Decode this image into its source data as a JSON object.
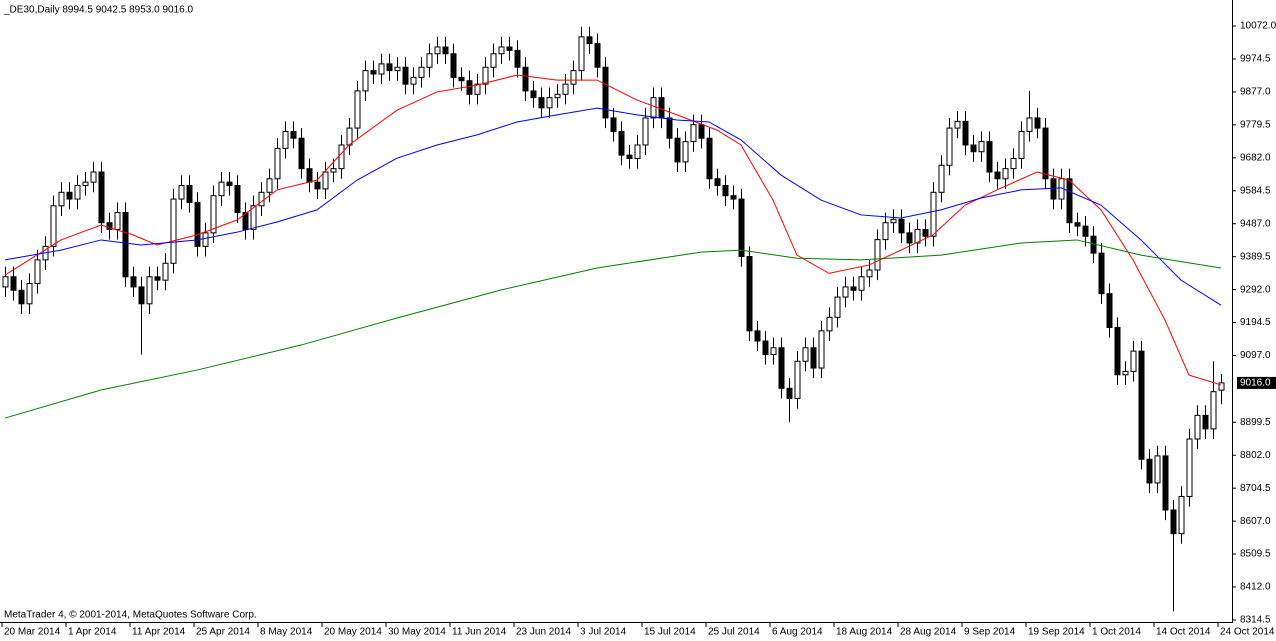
{
  "chart_data": {
    "type": "candlestick",
    "title": "_DE30,Daily  8994.5 9042.5 8953.0 9016.0",
    "footer": "MetaTrader 4, © 2001-2014, MetaQuotes Software Corp.",
    "categories": [
      "20 Mar 2014",
      null,
      null,
      null,
      null,
      null,
      null,
      null,
      "1 Apr 2014",
      null,
      null,
      null,
      null,
      null,
      null,
      null,
      "11 Apr 2014",
      null,
      null,
      null,
      null,
      null,
      null,
      null,
      "25 Apr 2014",
      null,
      null,
      null,
      null,
      null,
      null,
      null,
      "8 May 2014",
      null,
      null,
      null,
      null,
      null,
      null,
      null,
      "20 May 2014",
      null,
      null,
      null,
      null,
      null,
      null,
      null,
      "30 May 2014",
      null,
      null,
      null,
      null,
      null,
      null,
      null,
      "11 Jun 2014",
      null,
      null,
      null,
      null,
      null,
      null,
      null,
      "23 Jun 2014",
      null,
      null,
      null,
      null,
      null,
      null,
      null,
      "3 Jul 2014",
      null,
      null,
      null,
      null,
      null,
      null,
      null,
      "15 Jul 2014",
      null,
      null,
      null,
      null,
      null,
      null,
      null,
      "25 Jul 2014",
      null,
      null,
      null,
      null,
      null,
      null,
      null,
      "6 Aug 2014",
      null,
      null,
      null,
      null,
      null,
      null,
      null,
      "18 Aug 2014",
      null,
      null,
      null,
      null,
      null,
      null,
      null,
      "28 Aug 2014",
      null,
      null,
      null,
      null,
      null,
      null,
      null,
      "9 Sep 2014",
      null,
      null,
      null,
      null,
      null,
      null,
      null,
      "19 Sep 2014",
      null,
      null,
      null,
      null,
      null,
      null,
      null,
      "1 Oct 2014",
      null,
      null,
      null,
      null,
      null,
      null,
      null,
      "14 Oct 2014",
      null,
      null,
      null,
      null,
      null,
      null,
      null,
      "24 Oct 2014"
    ],
    "open": [
      9300,
      9330,
      9290,
      9250,
      9310,
      9380,
      9420,
      9540,
      9580,
      9560,
      9600,
      9610,
      9640,
      9490,
      9470,
      9520,
      9330,
      9300,
      9250,
      9330,
      9320,
      9370,
      9560,
      9600,
      9550,
      9420,
      9460,
      9570,
      9610,
      9600,
      9520,
      9470,
      9540,
      9580,
      9620,
      9710,
      9760,
      9740,
      9650,
      9610,
      9590,
      9640,
      9650,
      9720,
      9770,
      9880,
      9940,
      9930,
      9960,
      9940,
      9950,
      9900,
      9920,
      9950,
      9990,
      10010,
      9990,
      9920,
      9910,
      9870,
      9900,
      9950,
      9990,
      10010,
      10000,
      9950,
      9880,
      9860,
      9830,
      9860,
      9870,
      9900,
      9940,
      10040,
      10020,
      9950,
      9800,
      9760,
      9690,
      9680,
      9720,
      9800,
      9860,
      9800,
      9740,
      9670,
      9730,
      9780,
      9740,
      9620,
      9600,
      9570,
      9560,
      9390,
      9170,
      9140,
      9100,
      9120,
      9000,
      8970,
      9080,
      9120,
      9060,
      9170,
      9210,
      9270,
      9300,
      9290,
      9330,
      9350,
      9440,
      9490,
      9500,
      9460,
      9430,
      9470,
      9450,
      9580,
      9660,
      9770,
      9790,
      9720,
      9700,
      9730,
      9640,
      9620,
      9650,
      9680,
      9760,
      9800,
      9770,
      9620,
      9560,
      9620,
      9490,
      9480,
      9450,
      9400,
      9280,
      9180,
      9040,
      9050,
      9110,
      8790,
      8720,
      8800,
      8640,
      8570,
      8680,
      8850,
      8920,
      8880,
      8994.5
    ],
    "high": [
      9360,
      9360,
      9320,
      9340,
      9410,
      9450,
      9570,
      9610,
      9610,
      9630,
      9640,
      9670,
      9670,
      9520,
      9550,
      9550,
      9360,
      9330,
      9360,
      9360,
      9400,
      9590,
      9630,
      9630,
      9580,
      9490,
      9600,
      9640,
      9640,
      9630,
      9550,
      9570,
      9610,
      9650,
      9740,
      9790,
      9790,
      9770,
      9680,
      9640,
      9670,
      9680,
      9750,
      9800,
      9910,
      9970,
      9970,
      9990,
      9990,
      9980,
      9980,
      9950,
      9980,
      10020,
      10040,
      10040,
      10020,
      9950,
      9940,
      9930,
      9980,
      10020,
      10040,
      10040,
      10030,
      9980,
      9910,
      9890,
      9890,
      9900,
      9930,
      9970,
      10070,
      10070,
      10050,
      9980,
      9830,
      9790,
      9720,
      9750,
      9830,
      9890,
      9890,
      9830,
      9770,
      9760,
      9810,
      9810,
      9770,
      9650,
      9630,
      9600,
      9590,
      9420,
      9200,
      9170,
      9150,
      9150,
      9030,
      9110,
      9150,
      9150,
      9200,
      9240,
      9300,
      9330,
      9330,
      9360,
      9380,
      9470,
      9520,
      9530,
      9530,
      9490,
      9500,
      9500,
      9610,
      9690,
      9800,
      9820,
      9820,
      9750,
      9760,
      9760,
      9670,
      9680,
      9710,
      9790,
      9880,
      9830,
      9800,
      9650,
      9650,
      9650,
      9520,
      9510,
      9480,
      9430,
      9310,
      9210,
      9080,
      9140,
      9140,
      8820,
      8830,
      8830,
      8670,
      8710,
      8880,
      8950,
      8950,
      9080,
      9042.5
    ],
    "low": [
      9270,
      9260,
      9220,
      9220,
      9280,
      9350,
      9390,
      9510,
      9530,
      9530,
      9570,
      9580,
      9460,
      9440,
      9440,
      9300,
      9270,
      9100,
      9220,
      9290,
      9290,
      9340,
      9530,
      9520,
      9390,
      9390,
      9430,
      9540,
      9570,
      9490,
      9440,
      9440,
      9510,
      9550,
      9590,
      9680,
      9710,
      9620,
      9580,
      9560,
      9560,
      9610,
      9620,
      9690,
      9740,
      9850,
      9900,
      9900,
      9910,
      9910,
      9870,
      9870,
      9890,
      9920,
      9960,
      9960,
      9890,
      9880,
      9840,
      9840,
      9870,
      9920,
      9960,
      9970,
      9920,
      9850,
      9830,
      9800,
      9800,
      9830,
      9840,
      9870,
      9910,
      9990,
      9920,
      9770,
      9730,
      9660,
      9650,
      9650,
      9690,
      9770,
      9770,
      9710,
      9640,
      9640,
      9700,
      9710,
      9590,
      9570,
      9540,
      9530,
      9360,
      9140,
      9110,
      9070,
      9070,
      8970,
      8900,
      8940,
      9050,
      9030,
      9030,
      9140,
      9180,
      9240,
      9260,
      9260,
      9300,
      9320,
      9410,
      9460,
      9430,
      9400,
      9400,
      9420,
      9420,
      9550,
      9630,
      9740,
      9690,
      9670,
      9670,
      9610,
      9590,
      9590,
      9620,
      9650,
      9730,
      9740,
      9590,
      9530,
      9530,
      9460,
      9450,
      9420,
      9370,
      9250,
      9150,
      9010,
      9010,
      9020,
      8760,
      8690,
      8690,
      8610,
      8340,
      8540,
      8650,
      8820,
      8850,
      8850,
      8953
    ],
    "close": [
      9330,
      9290,
      9250,
      9310,
      9380,
      9420,
      9540,
      9580,
      9560,
      9600,
      9610,
      9640,
      9490,
      9470,
      9520,
      9330,
      9300,
      9250,
      9330,
      9320,
      9370,
      9560,
      9600,
      9550,
      9420,
      9460,
      9570,
      9610,
      9600,
      9520,
      9470,
      9540,
      9580,
      9620,
      9710,
      9760,
      9740,
      9650,
      9610,
      9590,
      9640,
      9650,
      9720,
      9770,
      9880,
      9940,
      9930,
      9960,
      9940,
      9950,
      9900,
      9920,
      9950,
      9990,
      10010,
      9990,
      9920,
      9910,
      9870,
      9900,
      9950,
      9990,
      10010,
      10000,
      9950,
      9880,
      9860,
      9830,
      9860,
      9870,
      9900,
      9940,
      10040,
      10020,
      9950,
      9800,
      9760,
      9690,
      9680,
      9720,
      9800,
      9860,
      9800,
      9740,
      9670,
      9730,
      9780,
      9740,
      9620,
      9600,
      9570,
      9560,
      9390,
      9170,
      9140,
      9100,
      9120,
      9000,
      8970,
      9080,
      9120,
      9060,
      9170,
      9210,
      9270,
      9300,
      9290,
      9330,
      9350,
      9440,
      9490,
      9500,
      9460,
      9430,
      9470,
      9450,
      9580,
      9660,
      9770,
      9790,
      9720,
      9700,
      9730,
      9640,
      9620,
      9650,
      9680,
      9760,
      9800,
      9770,
      9620,
      9560,
      9620,
      9490,
      9480,
      9450,
      9400,
      9280,
      9180,
      9040,
      9050,
      9110,
      8790,
      8720,
      8800,
      8640,
      8570,
      8680,
      8850,
      8920,
      8880,
      8990,
      9016
    ],
    "lines": [
      {
        "color": "#ff0000",
        "x": [
          0,
          7,
          12,
          16,
          19,
          24,
          29,
          34,
          39,
          43,
          49,
          54,
          59,
          64,
          69,
          74,
          79,
          84,
          89,
          92,
          96,
          99,
          103,
          108,
          112,
          116,
          120,
          124,
          129,
          133,
          137,
          141,
          145,
          148,
          152
        ],
        "values": [
          9335,
          9439,
          9483,
          9454,
          9424,
          9454,
          9498,
          9587,
          9616,
          9720,
          9823,
          9877,
          9897,
          9927,
          9912,
          9912,
          9853,
          9809,
          9764,
          9720,
          9557,
          9394,
          9340,
          9365,
          9409,
          9454,
          9542,
          9587,
          9640,
          9616,
          9528,
          9380,
          9202,
          9039,
          9010
        ]
      },
      {
        "color": "#0000ff",
        "x": [
          0,
          7,
          12,
          17,
          24,
          29,
          34,
          39,
          44,
          49,
          54,
          59,
          64,
          69,
          74,
          79,
          84,
          88,
          92,
          97,
          102,
          107,
          112,
          117,
          122,
          127,
          132,
          137,
          142,
          147,
          152
        ],
        "values": [
          9380,
          9409,
          9439,
          9424,
          9439,
          9462,
          9492,
          9528,
          9616,
          9681,
          9720,
          9750,
          9788,
          9809,
          9829,
          9809,
          9794,
          9788,
          9735,
          9631,
          9557,
          9513,
          9504,
          9528,
          9563,
          9587,
          9593,
          9542,
          9439,
          9320,
          9246
        ]
      },
      {
        "color": "#008000",
        "x": [
          0,
          12,
          24,
          37,
          49,
          62,
          74,
          87,
          92,
          99,
          107,
          117,
          127,
          134,
          142,
          152
        ],
        "values": [
          8912,
          8995,
          9054,
          9128,
          9208,
          9291,
          9356,
          9403,
          9409,
          9385,
          9380,
          9394,
          9430,
          9439,
          9394,
          9356
        ]
      }
    ],
    "last_price": {
      "value": 9016,
      "label": "9016.0"
    },
    "ylim": [
      8308.5,
      10149
    ],
    "yticks": [
      {
        "value": 10072,
        "label": "10072.0"
      },
      9974.5,
      {
        "value": 9877,
        "label": "9877.0"
      },
      9779.5,
      {
        "value": 9682,
        "label": "9682.0"
      },
      9584.5,
      {
        "value": 9487,
        "label": "9487.0"
      },
      9389.5,
      {
        "value": 9292,
        "label": "9292.0"
      },
      9194.5,
      {
        "value": 9097,
        "label": "9097.0"
      },
      8899.5,
      {
        "value": 8802,
        "label": "8802.0"
      },
      8704.5,
      {
        "value": 8607,
        "label": "8607.0"
      },
      8509.5,
      {
        "value": 8412,
        "label": "8412.0"
      },
      8314.5
    ]
  }
}
